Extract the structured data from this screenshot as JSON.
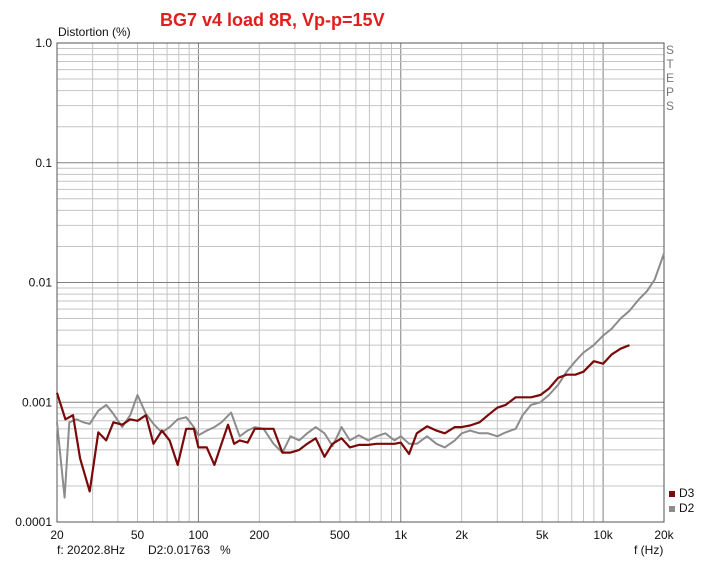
{
  "chart_data": {
    "type": "line",
    "title": "BG7 v4 load 8R, Vp-p=15V",
    "ylabel": "Distortion (%)",
    "xlabel": "f (Hz)",
    "x_scale": "log",
    "y_scale": "log",
    "xlim": [
      20,
      20000
    ],
    "ylim": [
      0.0001,
      1.0
    ],
    "grid": true,
    "legend_position": "bottom-right",
    "side_label": [
      "S",
      "T",
      "E",
      "P",
      "S"
    ],
    "y_ticks": [
      {
        "value": 1.0,
        "label": "1.0"
      },
      {
        "value": 0.1,
        "label": "0.1"
      },
      {
        "value": 0.01,
        "label": "0.01"
      },
      {
        "value": 0.001,
        "label": "0.001"
      },
      {
        "value": 0.0001,
        "label": "0.0001"
      }
    ],
    "x_ticks": [
      {
        "value": 20,
        "label": "20"
      },
      {
        "value": 50,
        "label": "50"
      },
      {
        "value": 100,
        "label": "100"
      },
      {
        "value": 200,
        "label": "200"
      },
      {
        "value": 500,
        "label": "500"
      },
      {
        "value": 1000,
        "label": "1k"
      },
      {
        "value": 2000,
        "label": "2k"
      },
      {
        "value": 5000,
        "label": "5k"
      },
      {
        "value": 10000,
        "label": "10k"
      },
      {
        "value": 20000,
        "label": "20k"
      }
    ],
    "series": [
      {
        "name": "D2",
        "color": "#8c8c8c",
        "points": [
          [
            20,
            0.00068
          ],
          [
            21.8,
            0.00016
          ],
          [
            23,
            0.00068
          ],
          [
            25,
            0.00072
          ],
          [
            27,
            0.00068
          ],
          [
            29,
            0.00066
          ],
          [
            32,
            0.00085
          ],
          [
            35,
            0.00095
          ],
          [
            38,
            0.0008
          ],
          [
            42,
            0.00062
          ],
          [
            46,
            0.00078
          ],
          [
            50,
            0.00115
          ],
          [
            55,
            0.0008
          ],
          [
            60,
            0.00066
          ],
          [
            66,
            0.00056
          ],
          [
            72,
            0.00062
          ],
          [
            79,
            0.00072
          ],
          [
            87,
            0.00075
          ],
          [
            95,
            0.00062
          ],
          [
            100,
            0.00053
          ],
          [
            110,
            0.00058
          ],
          [
            120,
            0.00062
          ],
          [
            130,
            0.00068
          ],
          [
            145,
            0.00082
          ],
          [
            160,
            0.00052
          ],
          [
            175,
            0.00058
          ],
          [
            190,
            0.00062
          ],
          [
            210,
            0.0006
          ],
          [
            235,
            0.00045
          ],
          [
            260,
            0.00038
          ],
          [
            285,
            0.00052
          ],
          [
            315,
            0.00048
          ],
          [
            345,
            0.00055
          ],
          [
            380,
            0.00062
          ],
          [
            420,
            0.00055
          ],
          [
            460,
            0.00043
          ],
          [
            510,
            0.00062
          ],
          [
            560,
            0.00048
          ],
          [
            620,
            0.00053
          ],
          [
            690,
            0.00048
          ],
          [
            760,
            0.00052
          ],
          [
            840,
            0.00055
          ],
          [
            930,
            0.00048
          ],
          [
            1000,
            0.00052
          ],
          [
            1100,
            0.00045
          ],
          [
            1200,
            0.00045
          ],
          [
            1350,
            0.00052
          ],
          [
            1500,
            0.00045
          ],
          [
            1650,
            0.00042
          ],
          [
            1850,
            0.00048
          ],
          [
            2000,
            0.00055
          ],
          [
            2200,
            0.00058
          ],
          [
            2450,
            0.00055
          ],
          [
            2700,
            0.00055
          ],
          [
            3000,
            0.00052
          ],
          [
            3300,
            0.00056
          ],
          [
            3700,
            0.0006
          ],
          [
            4000,
            0.00078
          ],
          [
            4400,
            0.00095
          ],
          [
            4900,
            0.001
          ],
          [
            5400,
            0.00115
          ],
          [
            6000,
            0.0014
          ],
          [
            6600,
            0.0018
          ],
          [
            7300,
            0.0022
          ],
          [
            8000,
            0.0026
          ],
          [
            9000,
            0.003
          ],
          [
            10000,
            0.0036
          ],
          [
            11000,
            0.0041
          ],
          [
            12200,
            0.005
          ],
          [
            13500,
            0.0058
          ],
          [
            15000,
            0.0072
          ],
          [
            16500,
            0.0085
          ],
          [
            18000,
            0.0106
          ],
          [
            20000,
            0.0175
          ]
        ]
      },
      {
        "name": "D3",
        "color": "#7a0a0a",
        "points": [
          [
            20,
            0.0012
          ],
          [
            22,
            0.00072
          ],
          [
            24,
            0.00078
          ],
          [
            26,
            0.00034
          ],
          [
            29,
            0.00018
          ],
          [
            32,
            0.00056
          ],
          [
            35,
            0.00048
          ],
          [
            38,
            0.00068
          ],
          [
            42,
            0.00065
          ],
          [
            46,
            0.00072
          ],
          [
            50,
            0.0007
          ],
          [
            55,
            0.00078
          ],
          [
            60,
            0.00045
          ],
          [
            66,
            0.00058
          ],
          [
            72,
            0.00048
          ],
          [
            79,
            0.0003
          ],
          [
            87,
            0.0006
          ],
          [
            95,
            0.0006
          ],
          [
            100,
            0.00042
          ],
          [
            110,
            0.00042
          ],
          [
            120,
            0.0003
          ],
          [
            130,
            0.00045
          ],
          [
            140,
            0.00065
          ],
          [
            150,
            0.00045
          ],
          [
            160,
            0.00048
          ],
          [
            175,
            0.00046
          ],
          [
            190,
            0.0006
          ],
          [
            210,
            0.0006
          ],
          [
            235,
            0.0006
          ],
          [
            260,
            0.00038
          ],
          [
            285,
            0.00038
          ],
          [
            315,
            0.0004
          ],
          [
            345,
            0.00045
          ],
          [
            380,
            0.0005
          ],
          [
            420,
            0.00035
          ],
          [
            460,
            0.00045
          ],
          [
            510,
            0.0005
          ],
          [
            560,
            0.00042
          ],
          [
            620,
            0.00044
          ],
          [
            690,
            0.00044
          ],
          [
            760,
            0.00045
          ],
          [
            840,
            0.00045
          ],
          [
            930,
            0.00045
          ],
          [
            1000,
            0.00046
          ],
          [
            1100,
            0.00037
          ],
          [
            1200,
            0.00055
          ],
          [
            1350,
            0.00063
          ],
          [
            1500,
            0.00058
          ],
          [
            1650,
            0.00055
          ],
          [
            1850,
            0.00062
          ],
          [
            2000,
            0.00062
          ],
          [
            2200,
            0.00064
          ],
          [
            2450,
            0.00068
          ],
          [
            2700,
            0.00078
          ],
          [
            3000,
            0.0009
          ],
          [
            3300,
            0.00095
          ],
          [
            3700,
            0.0011
          ],
          [
            4000,
            0.0011
          ],
          [
            4400,
            0.0011
          ],
          [
            4900,
            0.00115
          ],
          [
            5400,
            0.0013
          ],
          [
            6000,
            0.0016
          ],
          [
            6600,
            0.0017
          ],
          [
            7300,
            0.0017
          ],
          [
            8000,
            0.0018
          ],
          [
            9000,
            0.0022
          ],
          [
            10000,
            0.0021
          ],
          [
            11000,
            0.0025
          ],
          [
            12200,
            0.0028
          ],
          [
            13500,
            0.003
          ]
        ]
      }
    ],
    "legend": [
      {
        "name": "D3",
        "color": "#7a0a0a"
      },
      {
        "name": "D2",
        "color": "#8c8c8c"
      }
    ],
    "status": {
      "cursor_freq": "f: 20202.8Hz",
      "cursor_value": "D2:0.01763",
      "cursor_unit": "%"
    }
  }
}
